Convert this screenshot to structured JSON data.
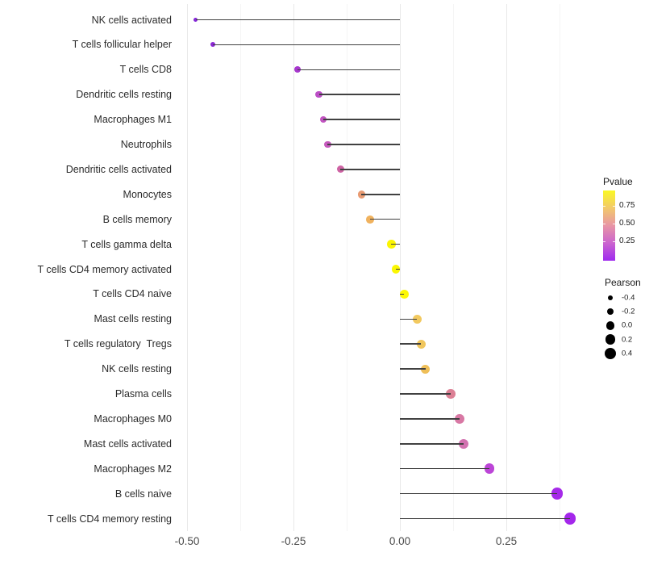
{
  "chart_data": {
    "type": "scatter",
    "variant": "lollipop",
    "title": "",
    "xlabel": "",
    "ylabel": "",
    "categories": [
      "NK cells activated",
      "T cells follicular helper",
      "T cells CD8",
      "Dendritic cells resting",
      "Macrophages M1",
      "Neutrophils",
      "Dendritic cells activated",
      "Monocytes",
      "B cells memory",
      "T cells gamma delta",
      "T cells CD4 memory activated",
      "T cells CD4 naive",
      "Mast cells resting",
      "T cells regulatory  Tregs",
      "NK cells resting",
      "Plasma cells",
      "Macrophages M0",
      "Mast cells activated",
      "Macrophages M2",
      "B cells naive",
      "T cells CD4 memory resting"
    ],
    "series": [
      {
        "name": "Pearson",
        "values": [
          -0.48,
          -0.44,
          -0.24,
          -0.19,
          -0.18,
          -0.17,
          -0.14,
          -0.09,
          -0.07,
          -0.02,
          -0.01,
          0.01,
          0.04,
          0.05,
          0.06,
          0.12,
          0.14,
          0.15,
          0.21,
          0.37,
          0.4
        ]
      }
    ],
    "point_colors": [
      "#8526D8",
      "#8B28D4",
      "#A737CE",
      "#BC4EC6",
      "#C254C1",
      "#C65ABD",
      "#CE63A4",
      "#E99B72",
      "#F0B25E",
      "#FBF502",
      "#FBF702",
      "#FCF805",
      "#F2C95F",
      "#F0C65D",
      "#EFBF58",
      "#DC8095",
      "#D878A4",
      "#D272B0",
      "#BC45D7",
      "#A62AE9",
      "#A427EB"
    ],
    "stem_color": "#414141",
    "xlim": [
      -0.55,
      0.45
    ],
    "x_ticks": [
      -0.5,
      -0.25,
      0.0,
      0.25
    ],
    "x_tick_labels": [
      "-0.50",
      "-0.25",
      "0.00",
      "0.25"
    ],
    "x_minor_ticks": [
      -0.375,
      -0.125,
      0.125,
      0.375
    ],
    "grid": "vertical major and minor gridlines, no axis lines, white background",
    "legend_position": "right",
    "legend": {
      "pvalue": {
        "title": "Pvalue",
        "tick_labels": [
          "0.75",
          "0.50",
          "0.25"
        ],
        "gradient_top_to_bottom": [
          "#FAF823",
          "#F2C96B",
          "#E895A5",
          "#CB64CF",
          "#9F2BEE"
        ]
      },
      "pearson": {
        "title": "Pearson",
        "size_labels": [
          "-0.4",
          "-0.2",
          "0.0",
          "0.2",
          "0.4"
        ],
        "dot_color": "#000000"
      }
    }
  }
}
